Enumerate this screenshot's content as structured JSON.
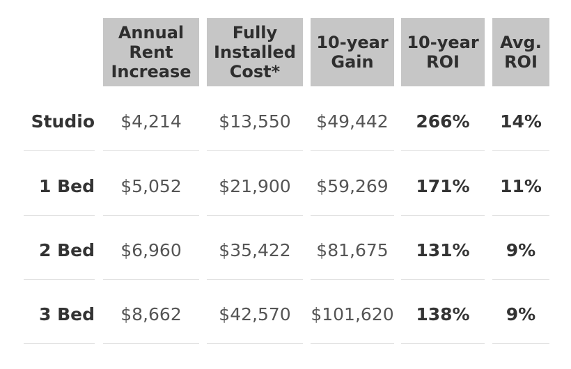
{
  "chart_data": {
    "type": "table",
    "columns": [
      {
        "label_lines": [
          "Annual",
          "Rent",
          "Increase"
        ]
      },
      {
        "label_lines": [
          "Fully",
          "Installed",
          "Cost*"
        ]
      },
      {
        "label_lines": [
          "10-year",
          "Gain"
        ]
      },
      {
        "label_lines": [
          "10-year",
          "ROI"
        ]
      },
      {
        "label_lines": [
          "Avg.",
          "ROI"
        ]
      }
    ],
    "rows": [
      {
        "label": "Studio",
        "values": [
          "$4,214",
          "$13,550",
          "$49,442",
          "266%",
          "14%"
        ]
      },
      {
        "label": "1 Bed",
        "values": [
          "$5,052",
          "$21,900",
          "$59,269",
          "171%",
          "11%"
        ]
      },
      {
        "label": "2 Bed",
        "values": [
          "$6,960",
          "$35,422",
          "$81,675",
          "131%",
          "9%"
        ]
      },
      {
        "label": "3 Bed",
        "values": [
          "$8,662",
          "$42,570",
          "$101,620",
          "138%",
          "9%"
        ]
      }
    ]
  },
  "colors": {
    "header_bg": "#c6c6c6",
    "header_text": "#2e2e2e",
    "value_text": "#555555",
    "bold_text": "#333333",
    "rule": "#e2e2e2"
  }
}
